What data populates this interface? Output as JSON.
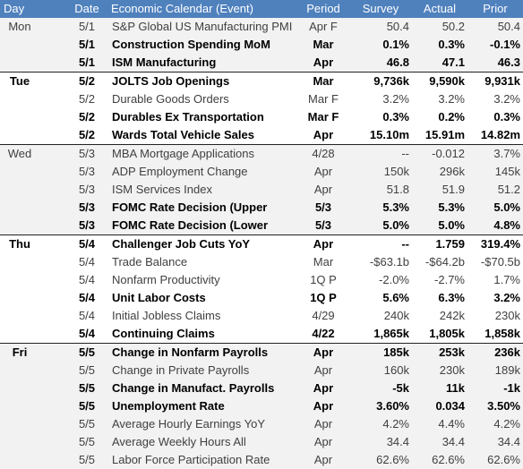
{
  "table": {
    "columns": [
      "Day",
      "Date",
      "Economic Calendar (Event)",
      "Period",
      "Survey",
      "Actual",
      "Prior"
    ],
    "groups": [
      {
        "day": "Mon",
        "rows": [
          {
            "date": "5/1",
            "event": "S&P Global US Manufacturing PMI",
            "period": "Apr F",
            "survey": "50.4",
            "actual": "50.2",
            "prior": "50.4",
            "bold": false
          },
          {
            "date": "5/1",
            "event": "Construction Spending MoM",
            "period": "Mar",
            "survey": "0.1%",
            "actual": "0.3%",
            "prior": "-0.1%",
            "bold": true
          },
          {
            "date": "5/1",
            "event": "ISM Manufacturing",
            "period": "Apr",
            "survey": "46.8",
            "actual": "47.1",
            "prior": "46.3",
            "bold": true
          }
        ]
      },
      {
        "day": "Tue",
        "rows": [
          {
            "date": "5/2",
            "event": "JOLTS Job Openings",
            "period": "Mar",
            "survey": "9,736k",
            "actual": "9,590k",
            "prior": "9,931k",
            "bold": true
          },
          {
            "date": "5/2",
            "event": "Durable Goods Orders",
            "period": "Mar F",
            "survey": "3.2%",
            "actual": "3.2%",
            "prior": "3.2%",
            "bold": false
          },
          {
            "date": "5/2",
            "event": "Durables Ex Transportation",
            "period": "Mar F",
            "survey": "0.3%",
            "actual": "0.2%",
            "prior": "0.3%",
            "bold": true
          },
          {
            "date": "5/2",
            "event": "Wards Total Vehicle Sales",
            "period": "Apr",
            "survey": "15.10m",
            "actual": "15.91m",
            "prior": "14.82m",
            "bold": true
          }
        ]
      },
      {
        "day": "Wed",
        "rows": [
          {
            "date": "5/3",
            "event": "MBA Mortgage Applications",
            "period": "4/28",
            "survey": "--",
            "actual": "-0.012",
            "prior": "3.7%",
            "bold": false
          },
          {
            "date": "5/3",
            "event": "ADP Employment Change",
            "period": "Apr",
            "survey": "150k",
            "actual": "296k",
            "prior": "145k",
            "bold": false
          },
          {
            "date": "5/3",
            "event": "ISM Services Index",
            "period": "Apr",
            "survey": "51.8",
            "actual": "51.9",
            "prior": "51.2",
            "bold": false
          },
          {
            "date": "5/3",
            "event": "FOMC Rate Decision (Upper",
            "period": "5/3",
            "survey": "5.3%",
            "actual": "5.3%",
            "prior": "5.0%",
            "bold": true
          },
          {
            "date": "5/3",
            "event": "FOMC Rate Decision (Lower",
            "period": "5/3",
            "survey": "5.0%",
            "actual": "5.0%",
            "prior": "4.8%",
            "bold": true
          }
        ]
      },
      {
        "day": "Thu",
        "rows": [
          {
            "date": "5/4",
            "event": "Challenger Job Cuts YoY",
            "period": "Apr",
            "survey": "--",
            "actual": "1.759",
            "prior": "319.4%",
            "bold": true
          },
          {
            "date": "5/4",
            "event": "Trade Balance",
            "period": "Mar",
            "survey": "-$63.1b",
            "actual": "-$64.2b",
            "prior": "-$70.5b",
            "bold": false
          },
          {
            "date": "5/4",
            "event": "Nonfarm Productivity",
            "period": "1Q P",
            "survey": "-2.0%",
            "actual": "-2.7%",
            "prior": "1.7%",
            "bold": false
          },
          {
            "date": "5/4",
            "event": "Unit Labor Costs",
            "period": "1Q P",
            "survey": "5.6%",
            "actual": "6.3%",
            "prior": "3.2%",
            "bold": true
          },
          {
            "date": "5/4",
            "event": "Initial Jobless Claims",
            "period": "4/29",
            "survey": "240k",
            "actual": "242k",
            "prior": "230k",
            "bold": false
          },
          {
            "date": "5/4",
            "event": "Continuing Claims",
            "period": "4/22",
            "survey": "1,865k",
            "actual": "1,805k",
            "prior": "1,858k",
            "bold": true
          }
        ]
      },
      {
        "day": "Fri",
        "rows": [
          {
            "date": "5/5",
            "event": "Change in Nonfarm Payrolls",
            "period": "Apr",
            "survey": "185k",
            "actual": "253k",
            "prior": "236k",
            "bold": true
          },
          {
            "date": "5/5",
            "event": "Change in Private Payrolls",
            "period": "Apr",
            "survey": "160k",
            "actual": "230k",
            "prior": "189k",
            "bold": false
          },
          {
            "date": "5/5",
            "event": "Change in Manufact. Payrolls",
            "period": "Apr",
            "survey": "-5k",
            "actual": "11k",
            "prior": "-1k",
            "bold": true
          },
          {
            "date": "5/5",
            "event": "Unemployment Rate",
            "period": "Apr",
            "survey": "3.60%",
            "actual": "0.034",
            "prior": "3.50%",
            "bold": true
          },
          {
            "date": "5/5",
            "event": "Average Hourly Earnings YoY",
            "period": "Apr",
            "survey": "4.2%",
            "actual": "4.4%",
            "prior": "4.2%",
            "bold": false
          },
          {
            "date": "5/5",
            "event": "Average Weekly Hours All",
            "period": "Apr",
            "survey": "34.4",
            "actual": "34.4",
            "prior": "34.4",
            "bold": false
          },
          {
            "date": "5/5",
            "event": "Labor Force Participation Rate",
            "period": "Apr",
            "survey": "62.6%",
            "actual": "62.6%",
            "prior": "62.6%",
            "bold": false
          }
        ]
      }
    ]
  }
}
